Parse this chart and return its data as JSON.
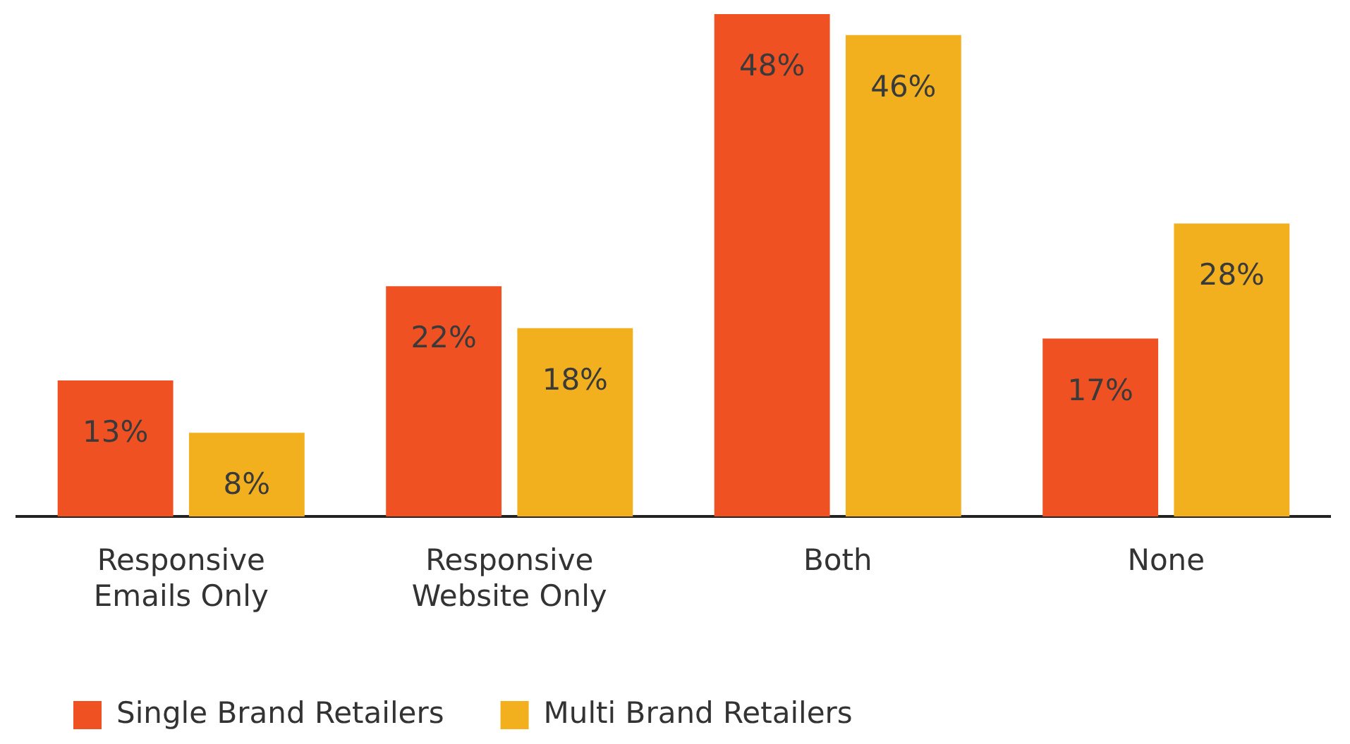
{
  "chart_data": {
    "type": "bar",
    "categories": [
      "Responsive Emails Only",
      "Responsive Website Only",
      "Both",
      "None"
    ],
    "series": [
      {
        "name": "Single Brand Retailers",
        "color": "#f05123",
        "values": [
          13,
          22,
          48,
          17
        ],
        "value_labels": [
          "13%",
          "22%",
          "48%",
          "17%"
        ]
      },
      {
        "name": "Multi Brand Retailers",
        "color": "#f2b01e",
        "values": [
          8,
          18,
          46,
          28
        ],
        "value_labels": [
          "8%",
          "18%",
          "46%",
          "28%"
        ]
      }
    ],
    "legend": "bottom left",
    "grid": false
  }
}
